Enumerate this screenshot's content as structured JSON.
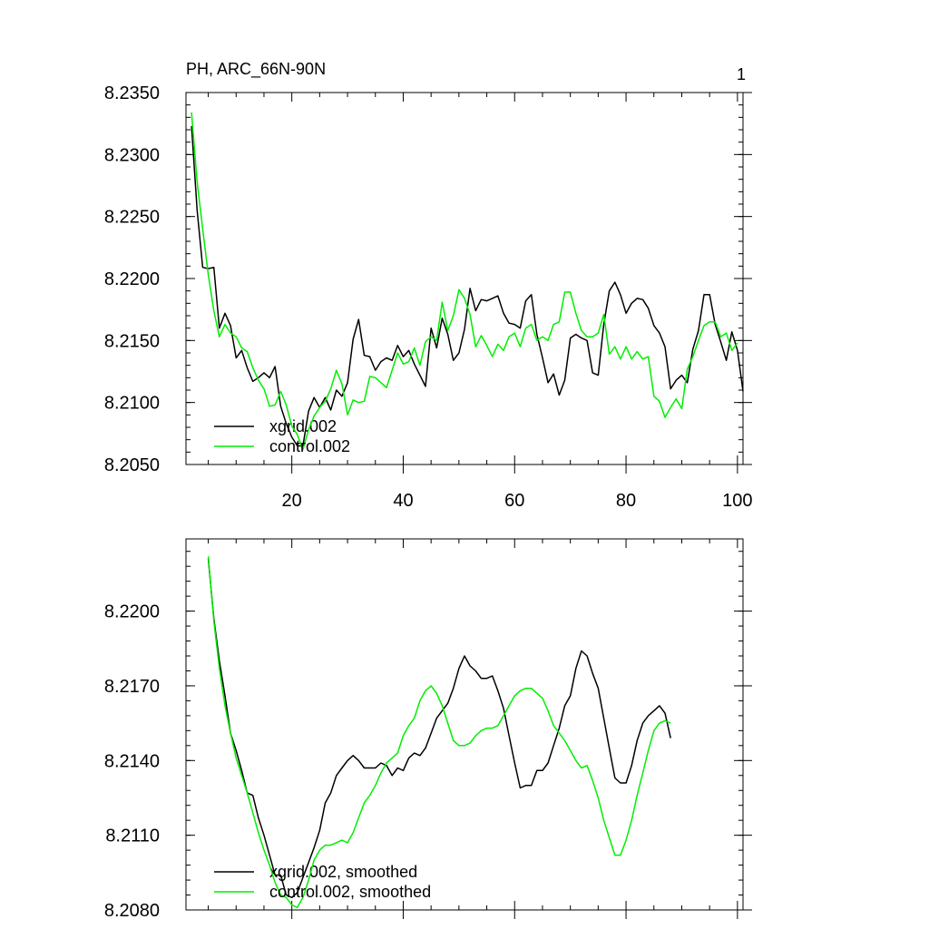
{
  "colors": {
    "series_a": "#000000",
    "series_b": "#00ee00"
  },
  "chart_data": [
    {
      "type": "line",
      "title": "PH, ARC_66N-90N",
      "page_number": "1",
      "xlim": [
        1,
        101
      ],
      "ylim": [
        8.205,
        8.235
      ],
      "yticks": [
        "8.2050",
        "8.2100",
        "8.2150",
        "8.2200",
        "8.2250",
        "8.2300",
        "8.2350"
      ],
      "xticks": [
        "20",
        "40",
        "60",
        "80",
        "100"
      ],
      "series": [
        {
          "name": "xgrid.002",
          "color": "#000000",
          "x_start": 2,
          "values": [
            8.2323,
            8.2255,
            8.2209,
            8.2208,
            8.2209,
            8.216,
            8.2172,
            8.2162,
            8.2136,
            8.2142,
            8.2128,
            8.2117,
            8.212,
            8.2124,
            8.212,
            8.2129,
            8.2097,
            8.2083,
            8.2072,
            8.2065,
            8.2065,
            8.2093,
            8.2104,
            8.2096,
            8.2104,
            8.2094,
            8.211,
            8.2105,
            8.2116,
            8.2151,
            8.2167,
            8.2138,
            8.2137,
            8.2126,
            8.2133,
            8.2136,
            8.2134,
            8.2146,
            8.2137,
            8.2142,
            8.2131,
            8.2122,
            8.2113,
            8.216,
            8.2144,
            8.2168,
            8.2155,
            8.2134,
            8.214,
            8.2159,
            8.2192,
            8.2174,
            8.2183,
            8.2182,
            8.2184,
            8.2186,
            8.2172,
            8.2164,
            8.2163,
            8.216,
            8.2182,
            8.2187,
            8.2155,
            8.2136,
            8.2116,
            8.2123,
            8.2106,
            8.2118,
            8.2152,
            8.2155,
            8.2152,
            8.215,
            8.2124,
            8.2122,
            8.2163,
            8.219,
            8.2197,
            8.2187,
            8.2172,
            8.218,
            8.2184,
            8.2183,
            8.2176,
            8.2162,
            8.2156,
            8.2145,
            8.2111,
            8.2118,
            8.2122,
            8.2116,
            8.2143,
            8.2158,
            8.2187,
            8.2187,
            8.2163,
            8.2149,
            8.2134,
            8.2157,
            8.2142,
            8.2109
          ]
        },
        {
          "name": "control.002",
          "color": "#00ee00",
          "x_start": 2,
          "values": [
            8.2334,
            8.2278,
            8.224,
            8.2203,
            8.2174,
            8.2153,
            8.2163,
            8.2156,
            8.2153,
            8.2144,
            8.2141,
            8.2128,
            8.2118,
            8.2111,
            8.2097,
            8.2098,
            8.2109,
            8.2098,
            8.2081,
            8.2074,
            8.2062,
            8.2078,
            8.2089,
            8.2096,
            8.2101,
            8.2111,
            8.2126,
            8.2115,
            8.209,
            8.2102,
            8.21,
            8.2101,
            8.2121,
            8.212,
            8.2116,
            8.2112,
            8.2126,
            8.214,
            8.2131,
            8.2133,
            8.2144,
            8.213,
            8.2149,
            8.2153,
            8.215,
            8.2181,
            8.2158,
            8.217,
            8.2191,
            8.2184,
            8.2171,
            8.2145,
            8.2154,
            8.2146,
            8.2137,
            8.2147,
            8.2142,
            8.2153,
            8.2156,
            8.2145,
            8.216,
            8.2163,
            8.215,
            8.2153,
            8.215,
            8.2163,
            8.2165,
            8.2189,
            8.2189,
            8.2172,
            8.2158,
            8.2153,
            8.2153,
            8.2156,
            8.2171,
            8.2139,
            8.2145,
            8.2135,
            8.2145,
            8.2135,
            8.2141,
            8.2135,
            8.2137,
            8.2105,
            8.2101,
            8.2088,
            8.2096,
            8.2103,
            8.2095,
            8.2127,
            8.2137,
            8.215,
            8.2162,
            8.2165,
            8.2165,
            8.2153,
            8.2156,
            8.2142,
            8.2148
          ]
        }
      ]
    },
    {
      "type": "line",
      "title": "",
      "xlim": [
        1,
        101
      ],
      "ylim": [
        8.208,
        8.2229
      ],
      "yticks": [
        "8.2080",
        "8.2110",
        "8.2140",
        "8.2170",
        "8.2200"
      ],
      "xticks": [],
      "series": [
        {
          "name": "xgrid.002, smoothed",
          "color": "#000000",
          "x_start": 5,
          "values": [
            8.2221,
            8.2197,
            8.218,
            8.2166,
            8.2151,
            8.2144,
            8.2136,
            8.2127,
            8.2126,
            8.2117,
            8.211,
            8.2102,
            8.2094,
            8.2094,
            8.2086,
            8.2085,
            8.2087,
            8.2093,
            8.2099,
            8.2105,
            8.2112,
            8.2123,
            8.2127,
            8.2134,
            8.2137,
            8.214,
            8.2142,
            8.214,
            8.2137,
            8.2137,
            8.2137,
            8.2139,
            8.2138,
            8.2134,
            8.2137,
            8.2136,
            8.2141,
            8.2143,
            8.2142,
            8.2145,
            8.2151,
            8.2157,
            8.216,
            8.2163,
            8.2169,
            8.2177,
            8.2182,
            8.2178,
            8.2176,
            8.2173,
            8.2173,
            8.2174,
            8.2168,
            8.2161,
            8.215,
            8.2139,
            8.2129,
            8.213,
            8.213,
            8.2136,
            8.2136,
            8.2139,
            8.2146,
            8.2153,
            8.2162,
            8.2166,
            8.2177,
            8.2184,
            8.2182,
            8.2175,
            8.2169,
            8.2157,
            8.2145,
            8.2133,
            8.2131,
            8.2131,
            8.2138,
            8.2148,
            8.2155,
            8.2158,
            8.216,
            8.2162,
            8.2159,
            8.2149
          ]
        },
        {
          "name": "control.002, smoothed",
          "color": "#00ee00",
          "x_start": 5,
          "values": [
            8.2222,
            8.2196,
            8.2177,
            8.2162,
            8.2151,
            8.2141,
            8.2134,
            8.2127,
            8.2119,
            8.2111,
            8.2104,
            8.2098,
            8.2091,
            8.2086,
            8.2085,
            8.2082,
            8.2081,
            8.2085,
            8.2092,
            8.21,
            8.2104,
            8.2106,
            8.2106,
            8.2107,
            8.2108,
            8.2107,
            8.2111,
            8.2117,
            8.2123,
            8.2126,
            8.213,
            8.2135,
            8.2139,
            8.2141,
            8.2143,
            8.215,
            8.2154,
            8.2157,
            8.2164,
            8.2168,
            8.217,
            8.2167,
            8.2162,
            8.2155,
            8.2148,
            8.2146,
            8.2146,
            8.2147,
            8.215,
            8.2152,
            8.2153,
            8.2153,
            8.2154,
            8.2158,
            8.2162,
            8.2166,
            8.2168,
            8.2169,
            8.2169,
            8.2167,
            8.2165,
            8.216,
            8.2154,
            8.2151,
            8.2148,
            8.2144,
            8.214,
            8.2137,
            8.2138,
            8.2132,
            8.2125,
            8.2116,
            8.2109,
            8.2102,
            8.2102,
            8.2108,
            8.2116,
            8.2126,
            8.2135,
            8.2144,
            8.2152,
            8.2155,
            8.2156,
            8.2155
          ]
        }
      ]
    }
  ]
}
